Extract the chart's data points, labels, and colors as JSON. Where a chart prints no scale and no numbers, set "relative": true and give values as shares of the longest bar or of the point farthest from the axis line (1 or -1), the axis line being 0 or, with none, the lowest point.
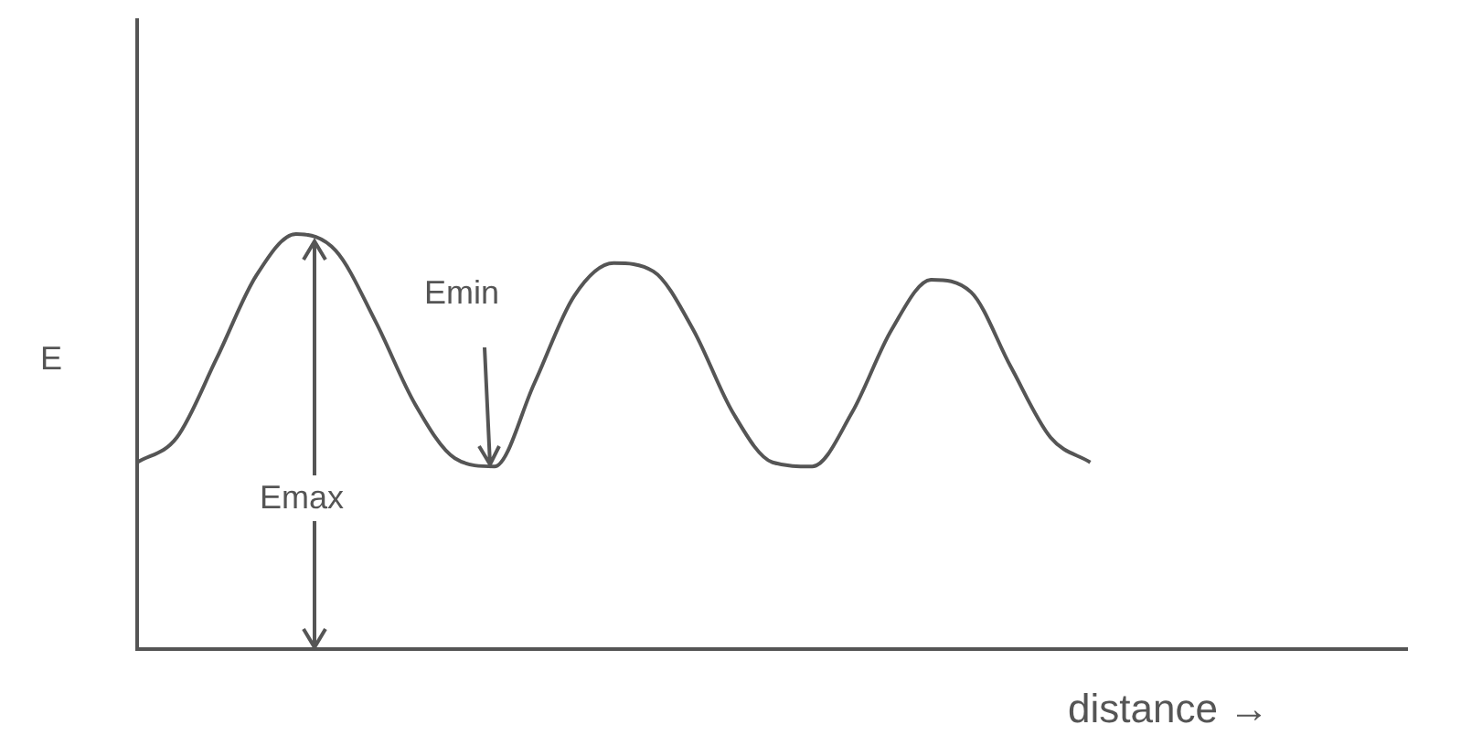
{
  "chart_data": {
    "type": "line",
    "relative": true,
    "xlabel": "distance →",
    "ylabel": "E",
    "color": "#555555",
    "marker": "none",
    "categories": [
      null,
      null,
      null,
      null,
      null,
      null,
      null,
      null,
      null,
      null,
      null,
      null,
      null,
      null,
      null,
      null,
      null,
      null,
      null,
      null,
      null,
      null,
      null,
      null,
      null,
      null,
      null,
      null,
      null,
      null,
      null,
      null,
      null
    ],
    "values": [
      0.45,
      0.51,
      0.7,
      0.9,
      1,
      0.96,
      0.79,
      0.59,
      0.46,
      0.44,
      0.64,
      0.85,
      0.93,
      0.91,
      0.77,
      0.57,
      0.45,
      0.44,
      0.57,
      0.77,
      0.89,
      0.86,
      0.68,
      0.51,
      0.45,
      null,
      null,
      null,
      null,
      null,
      null,
      null,
      null
    ],
    "annotations": [
      "Emin",
      "Emax"
    ]
  }
}
